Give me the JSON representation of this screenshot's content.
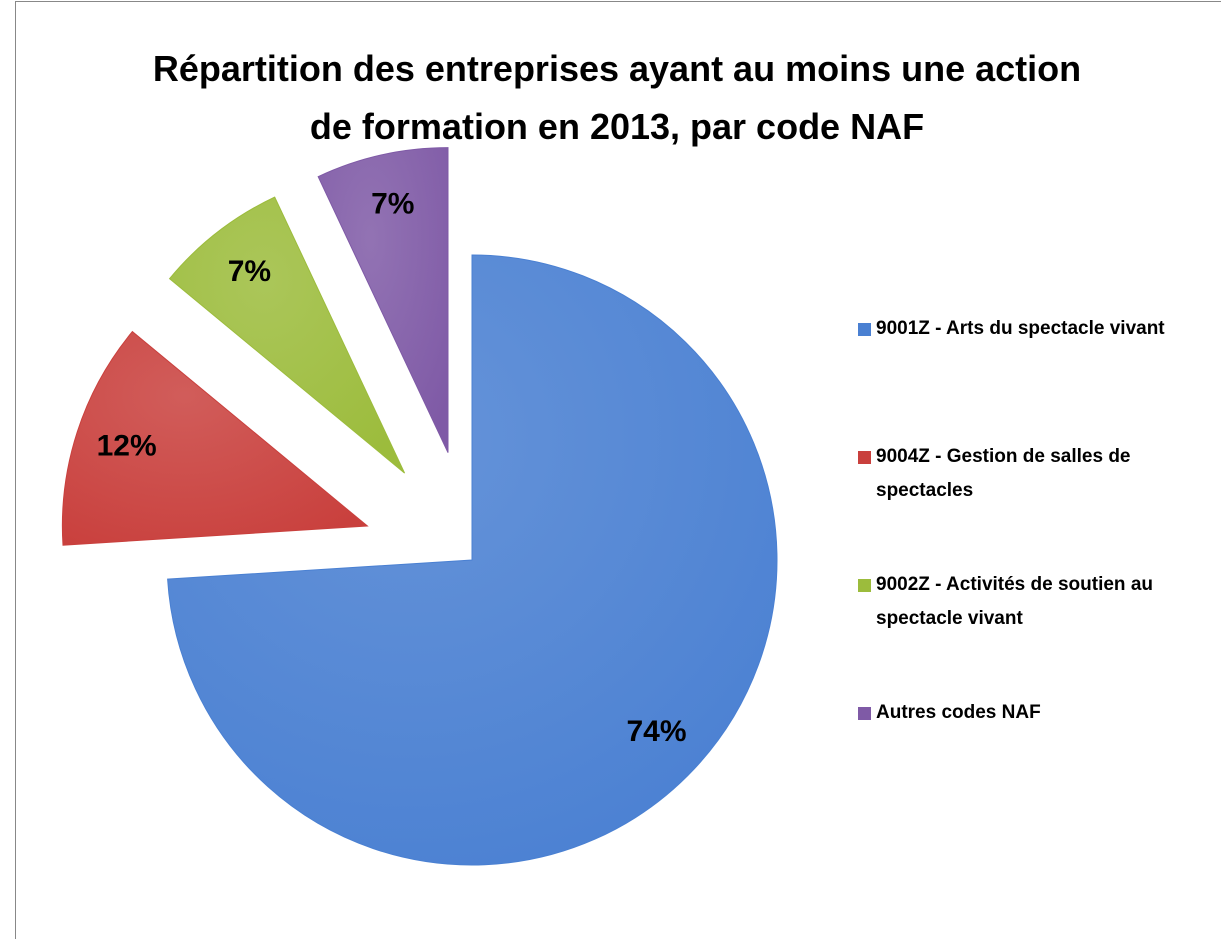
{
  "chart_data": {
    "type": "pie",
    "title": "Répartition des entreprises ayant au moins une action de formation en 2013, par code NAF",
    "categories": [
      "9001Z - Arts du spectacle vivant",
      "9004Z - Gestion de salles de spectacles",
      "9002Z - Activités de soutien au spectacle vivant",
      "Autres codes NAF"
    ],
    "values": [
      74,
      12,
      7,
      7
    ],
    "value_labels": [
      "74%",
      "12%",
      "7%",
      "7%"
    ],
    "colors": [
      "#4a80d2",
      "#c9403d",
      "#9cbc3c",
      "#7f5aa6"
    ],
    "legend": "right"
  }
}
